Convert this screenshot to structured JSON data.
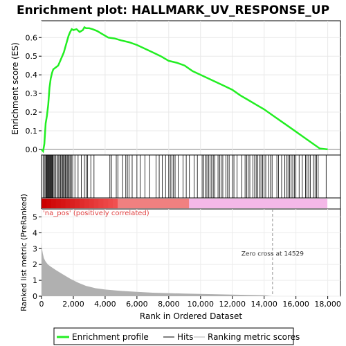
{
  "colors": {
    "enrichment": "#22ee22",
    "hits": "#000000",
    "metric": "#b0b0b0",
    "bar_pos_dark": "#cc0000",
    "bar_pos_light": "#f07070",
    "bar_pink": "#f4b8e8",
    "zero_line": "#a0a0a0",
    "annotation_text": "#e04040"
  },
  "chart_data": [
    {
      "type": "line",
      "title": "Enrichment plot: HALLMARK_UV_RESPONSE_UP",
      "ylabel": "Enrichment score (ES)",
      "xlim": [
        0,
        18800
      ],
      "ylim": [
        -0.03,
        0.69
      ],
      "yticks": [
        "0.0",
        "0.1",
        "0.2",
        "0.3",
        "0.4",
        "0.5",
        "0.6"
      ],
      "ytick_values": [
        0.0,
        0.1,
        0.2,
        0.3,
        0.4,
        0.5,
        0.6
      ],
      "series": [
        {
          "x": [
            0,
            100,
            180,
            260,
            340,
            420,
            500,
            580,
            660,
            740,
            900,
            1050,
            1200,
            1300,
            1400,
            1500,
            1600,
            1700,
            1800,
            1900,
            2000,
            2200,
            2400,
            2600,
            2700,
            2800,
            3000,
            3200,
            3500,
            3800,
            4200,
            4600,
            5000,
            5500,
            6000,
            6500,
            7000,
            7500,
            8000,
            8500,
            9000,
            9500,
            10000,
            10500,
            11000,
            11500,
            12000,
            12500,
            13000,
            13500,
            14000,
            14500,
            15000,
            15500,
            16000,
            16500,
            17000,
            17500,
            18000
          ],
          "y": [
            0.0,
            -0.01,
            0.03,
            0.14,
            0.18,
            0.24,
            0.33,
            0.38,
            0.41,
            0.43,
            0.44,
            0.45,
            0.48,
            0.5,
            0.52,
            0.55,
            0.58,
            0.61,
            0.63,
            0.645,
            0.64,
            0.645,
            0.63,
            0.64,
            0.655,
            0.65,
            0.65,
            0.645,
            0.635,
            0.62,
            0.6,
            0.595,
            0.585,
            0.575,
            0.56,
            0.54,
            0.52,
            0.5,
            0.475,
            0.465,
            0.45,
            0.42,
            0.4,
            0.38,
            0.36,
            0.34,
            0.32,
            0.29,
            0.265,
            0.24,
            0.215,
            0.185,
            0.155,
            0.125,
            0.095,
            0.065,
            0.035,
            0.005,
            0.0
          ]
        }
      ],
      "xtick_values": [
        0,
        2000,
        4000,
        6000,
        8000,
        10000,
        12000,
        14000,
        16000,
        18000
      ]
    },
    {
      "type": "hits",
      "hit_positions": [
        100,
        180,
        260,
        300,
        340,
        380,
        420,
        460,
        500,
        540,
        580,
        620,
        660,
        700,
        740,
        820,
        900,
        980,
        1050,
        1120,
        1200,
        1260,
        1320,
        1380,
        1440,
        1500,
        1560,
        1620,
        1680,
        1740,
        1800,
        1880,
        1960,
        2100,
        2300,
        2500,
        2700,
        2800,
        2900,
        3100,
        3300,
        4300,
        4400,
        4700,
        4800,
        5100,
        5300,
        5400,
        5500,
        5700,
        6000,
        6200,
        6500,
        6800,
        7200,
        7400,
        7600,
        7800,
        8000,
        8100,
        8200,
        8300,
        8400,
        8600,
        8900,
        9100,
        9300,
        9600,
        9800,
        10100,
        10200,
        10300,
        10400,
        10500,
        10600,
        10700,
        10800,
        10900,
        11100,
        11200,
        11300,
        11400,
        11600,
        11700,
        11800,
        12000,
        12100,
        12300,
        12600,
        12800,
        12900,
        13000,
        13100,
        13300,
        13400,
        13500,
        13600,
        13700,
        13800,
        13900,
        14000,
        14100,
        14300,
        14400,
        14500,
        14800,
        14900,
        15100,
        15300,
        15400,
        15500,
        15600,
        15700,
        15800,
        15900,
        16000,
        16200,
        16400,
        16600,
        16700,
        16800,
        16900,
        17100,
        17200,
        17300,
        17400,
        17900
      ]
    },
    {
      "type": "area",
      "ylabel": "Ranked list metric (PreRanked)",
      "xlabel": "Rank in Ordered Dataset",
      "xlim": [
        0,
        18800
      ],
      "ylim": [
        0,
        5.5
      ],
      "yticks": [
        "0",
        "1",
        "2",
        "3",
        "4",
        "5"
      ],
      "ytick_values": [
        0,
        1,
        2,
        3,
        4,
        5
      ],
      "xticks": [
        "0",
        "2,000",
        "4,000",
        "6,000",
        "8,000",
        "10,000",
        "12,000",
        "14,000",
        "16,000",
        "18,000"
      ],
      "xtick_values": [
        0,
        2000,
        4000,
        6000,
        8000,
        10000,
        12000,
        14000,
        16000,
        18000
      ],
      "x": [
        0,
        30,
        80,
        150,
        250,
        400,
        600,
        900,
        1300,
        1800,
        2300,
        2800,
        3400,
        4000,
        5000,
        6000,
        7000,
        8000,
        9000,
        10000,
        11000,
        12000,
        13000,
        14000,
        14529,
        15000,
        16000,
        17000,
        18000
      ],
      "y": [
        3.4,
        3.0,
        2.7,
        2.4,
        2.2,
        2.0,
        1.85,
        1.65,
        1.4,
        1.1,
        0.85,
        0.65,
        0.5,
        0.42,
        0.33,
        0.27,
        0.22,
        0.19,
        0.16,
        0.14,
        0.12,
        0.1,
        0.08,
        0.06,
        0.0,
        0.0,
        0.0,
        0.0,
        0.0
      ],
      "zero_cross_label": "Zero cross at 14529",
      "zero_cross_x": 14529,
      "corr_label": "'na_pos' (positively correlated)"
    }
  ],
  "legend": {
    "enrichment_label": "Enrichment profile",
    "hits_label": "Hits",
    "metric_label": "Ranking metric scores"
  }
}
